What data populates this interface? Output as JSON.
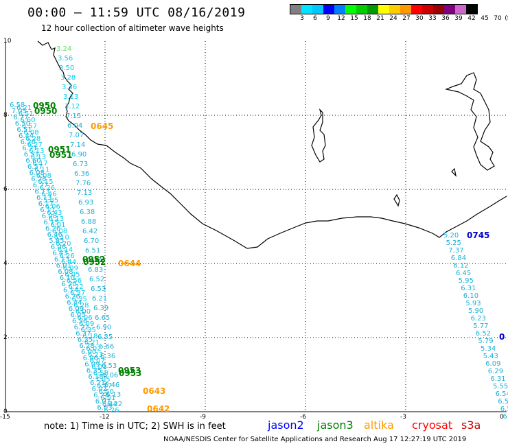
{
  "header": {
    "title": "00:00 – 11:59 UTC 08/16/2019",
    "subtitle": "12 hour collection of altimeter wave heights"
  },
  "legend": {
    "unit": "(ft)",
    "colors": [
      "#808080",
      "#00e5ff",
      "#00c8ff",
      "#0000ff",
      "#0080ff",
      "#00ff00",
      "#00cc00",
      "#009900",
      "#ffff00",
      "#ffcc00",
      "#ff9900",
      "#ff0000",
      "#cc0000",
      "#990000",
      "#800080",
      "#cc66cc",
      "#000000"
    ],
    "labels": [
      "3",
      "6",
      "9",
      "12",
      "15",
      "18",
      "21",
      "24",
      "27",
      "30",
      "33",
      "36",
      "39",
      "42",
      "45",
      "70"
    ]
  },
  "axes": {
    "x_ticks": [
      "-15",
      "-12",
      "-9",
      "-6",
      "-3",
      "0"
    ],
    "y_ticks": [
      "0",
      "2",
      "4",
      "6",
      "8",
      "10"
    ]
  },
  "tracks": {
    "left_values": [
      "6.58",
      "7.05",
      "6.77",
      "6.50",
      "6.51",
      "6.44",
      "6.26",
      "6.21",
      "6.51",
      "6.60",
      "6.57",
      "6.08",
      "6.28",
      "6.27",
      "6.13",
      "6.13",
      "6.17",
      "6.11",
      "6.08",
      "6.15",
      "6.26",
      "6.46",
      "5.85",
      "6.06",
      "6.43",
      "6.13",
      "6.01",
      "6.08",
      "6.10",
      "6.20",
      "6.14",
      "6.26",
      "6.44",
      "6.09",
      "6.05",
      "6.56",
      "6.22",
      "6.37",
      "6.35",
      "6.28",
      "6.00",
      "6.06",
      "6.09",
      "6.35",
      "6.18",
      "6.21",
      "6.02",
      "6.23",
      "6.07",
      "6.03"
    ],
    "mid_values": [
      "3.24",
      "3.56",
      "3.50",
      "3.28",
      "3.36",
      "3.13",
      "3.12",
      "7.15",
      "6.04",
      "7.07",
      "7.14",
      "6.90",
      "6.73",
      "6.36",
      "7.76",
      "7.13",
      "6.93",
      "6.38",
      "6.88",
      "6.42",
      "6.70",
      "6.51",
      "6.37",
      "6.83",
      "6.52",
      "6.53",
      "6.21",
      "6.39",
      "6.65",
      "6.90",
      "6.35",
      "6.66",
      "6.36",
      "6.53",
      "6.06",
      "6.46",
      "6.13",
      "6.22"
    ],
    "right_values": [
      "5.20",
      "5.25",
      "7.37",
      "6.84",
      "6.12",
      "6.45",
      "5.95",
      "6.31",
      "6.10",
      "5.93",
      "5.90",
      "6.23",
      "5.77",
      "6.52",
      "5.79",
      "5.34",
      "5.43",
      "6.09",
      "6.29",
      "6.31",
      "5.55",
      "6.54",
      "6.51",
      "6.56",
      "6.09"
    ],
    "times": [
      {
        "text": "0950",
        "color": "#008000"
      },
      {
        "text": "0950",
        "color": "#008000"
      },
      {
        "text": "0645",
        "color": "#ff9900"
      },
      {
        "text": "0951",
        "color": "#008000"
      },
      {
        "text": "0951",
        "color": "#008000"
      },
      {
        "text": "0952",
        "color": "#008000"
      },
      {
        "text": "0952",
        "color": "#008000"
      },
      {
        "text": "0644",
        "color": "#ff9900"
      },
      {
        "text": "0953",
        "color": "#008000"
      },
      {
        "text": "0953",
        "color": "#008000"
      },
      {
        "text": "0643",
        "color": "#ff9900"
      },
      {
        "text": "0642",
        "color": "#ff9900"
      },
      {
        "text": "0745",
        "color": "#0000cc"
      },
      {
        "text": "0",
        "color": "#0000cc"
      }
    ]
  },
  "footer": {
    "note": "note:  1) Time is in UTC;  2) SWH is in feet",
    "credit": "NOAA/NESDIS Center for Satellite Applications and Research    Aug 17 12:27:19 UTC 2019",
    "satellites": [
      {
        "name": "jason2",
        "color": "#0000ff"
      },
      {
        "name": "jason3",
        "color": "#008000"
      },
      {
        "name": "altika",
        "color": "#ff9900"
      },
      {
        "name": "cryosat",
        "color": "#ff0000"
      },
      {
        "name": "s3a",
        "color": "#cc0000"
      }
    ]
  }
}
